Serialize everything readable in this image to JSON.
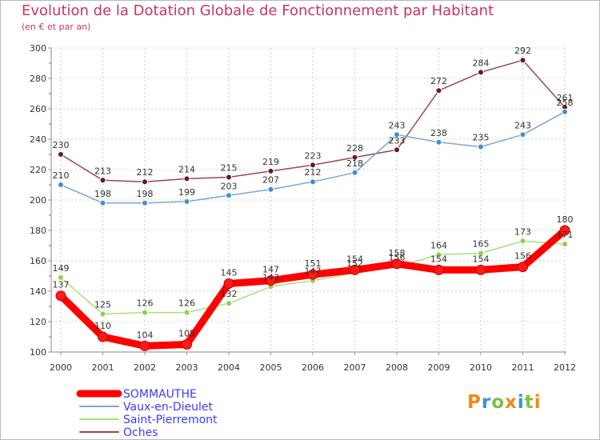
{
  "chart_data": {
    "type": "line",
    "title": "Evolution de la Dotation Globale de Fonctionnement par Habitant",
    "subtitle": "(en € et par an)",
    "xlabel": "",
    "ylabel": "",
    "x": [
      "2000",
      "2001",
      "2002",
      "2003",
      "2004",
      "2005",
      "2006",
      "2007",
      "2008",
      "2009",
      "2010",
      "2011",
      "2012"
    ],
    "ylim": [
      100,
      300
    ],
    "yticks": [
      "100",
      "120",
      "140",
      "160",
      "180",
      "200",
      "220",
      "240",
      "260",
      "280",
      "300"
    ],
    "grid": true,
    "series": [
      {
        "name": "SOMMAUTHE",
        "color": "#ff0000",
        "marker_color": "#ff1a1a",
        "values": [
          137,
          110,
          104,
          105,
          145,
          147,
          151,
          154,
          158,
          154,
          154,
          156,
          180
        ]
      },
      {
        "name": "Vaux-en-Dieulet",
        "color": "#7aa7d6",
        "marker_color": "#3e8fd6",
        "values": [
          210,
          198,
          198,
          199,
          203,
          207,
          212,
          218,
          243,
          238,
          235,
          243,
          258
        ]
      },
      {
        "name": "Saint-Pierremont",
        "color": "#a6e07a",
        "marker_color": "#8ed04a",
        "values": [
          149,
          125,
          126,
          126,
          132,
          143,
          147,
          152,
          156,
          164,
          165,
          173,
          171
        ]
      },
      {
        "name": "Oches",
        "color": "#9a4a4a",
        "marker_color": "#6a1a1a",
        "values": [
          230,
          213,
          212,
          214,
          215,
          219,
          223,
          228,
          233,
          272,
          284,
          292,
          261
        ]
      }
    ]
  },
  "logo": {
    "letters": [
      "P",
      "r",
      "o",
      "x",
      "i",
      "t",
      "i"
    ],
    "colors": [
      "#f08a1c",
      "#3e8fd6",
      "#7cc242",
      "#f08a1c",
      "#3e8fd6",
      "#7cc242",
      "#f08a1c"
    ]
  }
}
